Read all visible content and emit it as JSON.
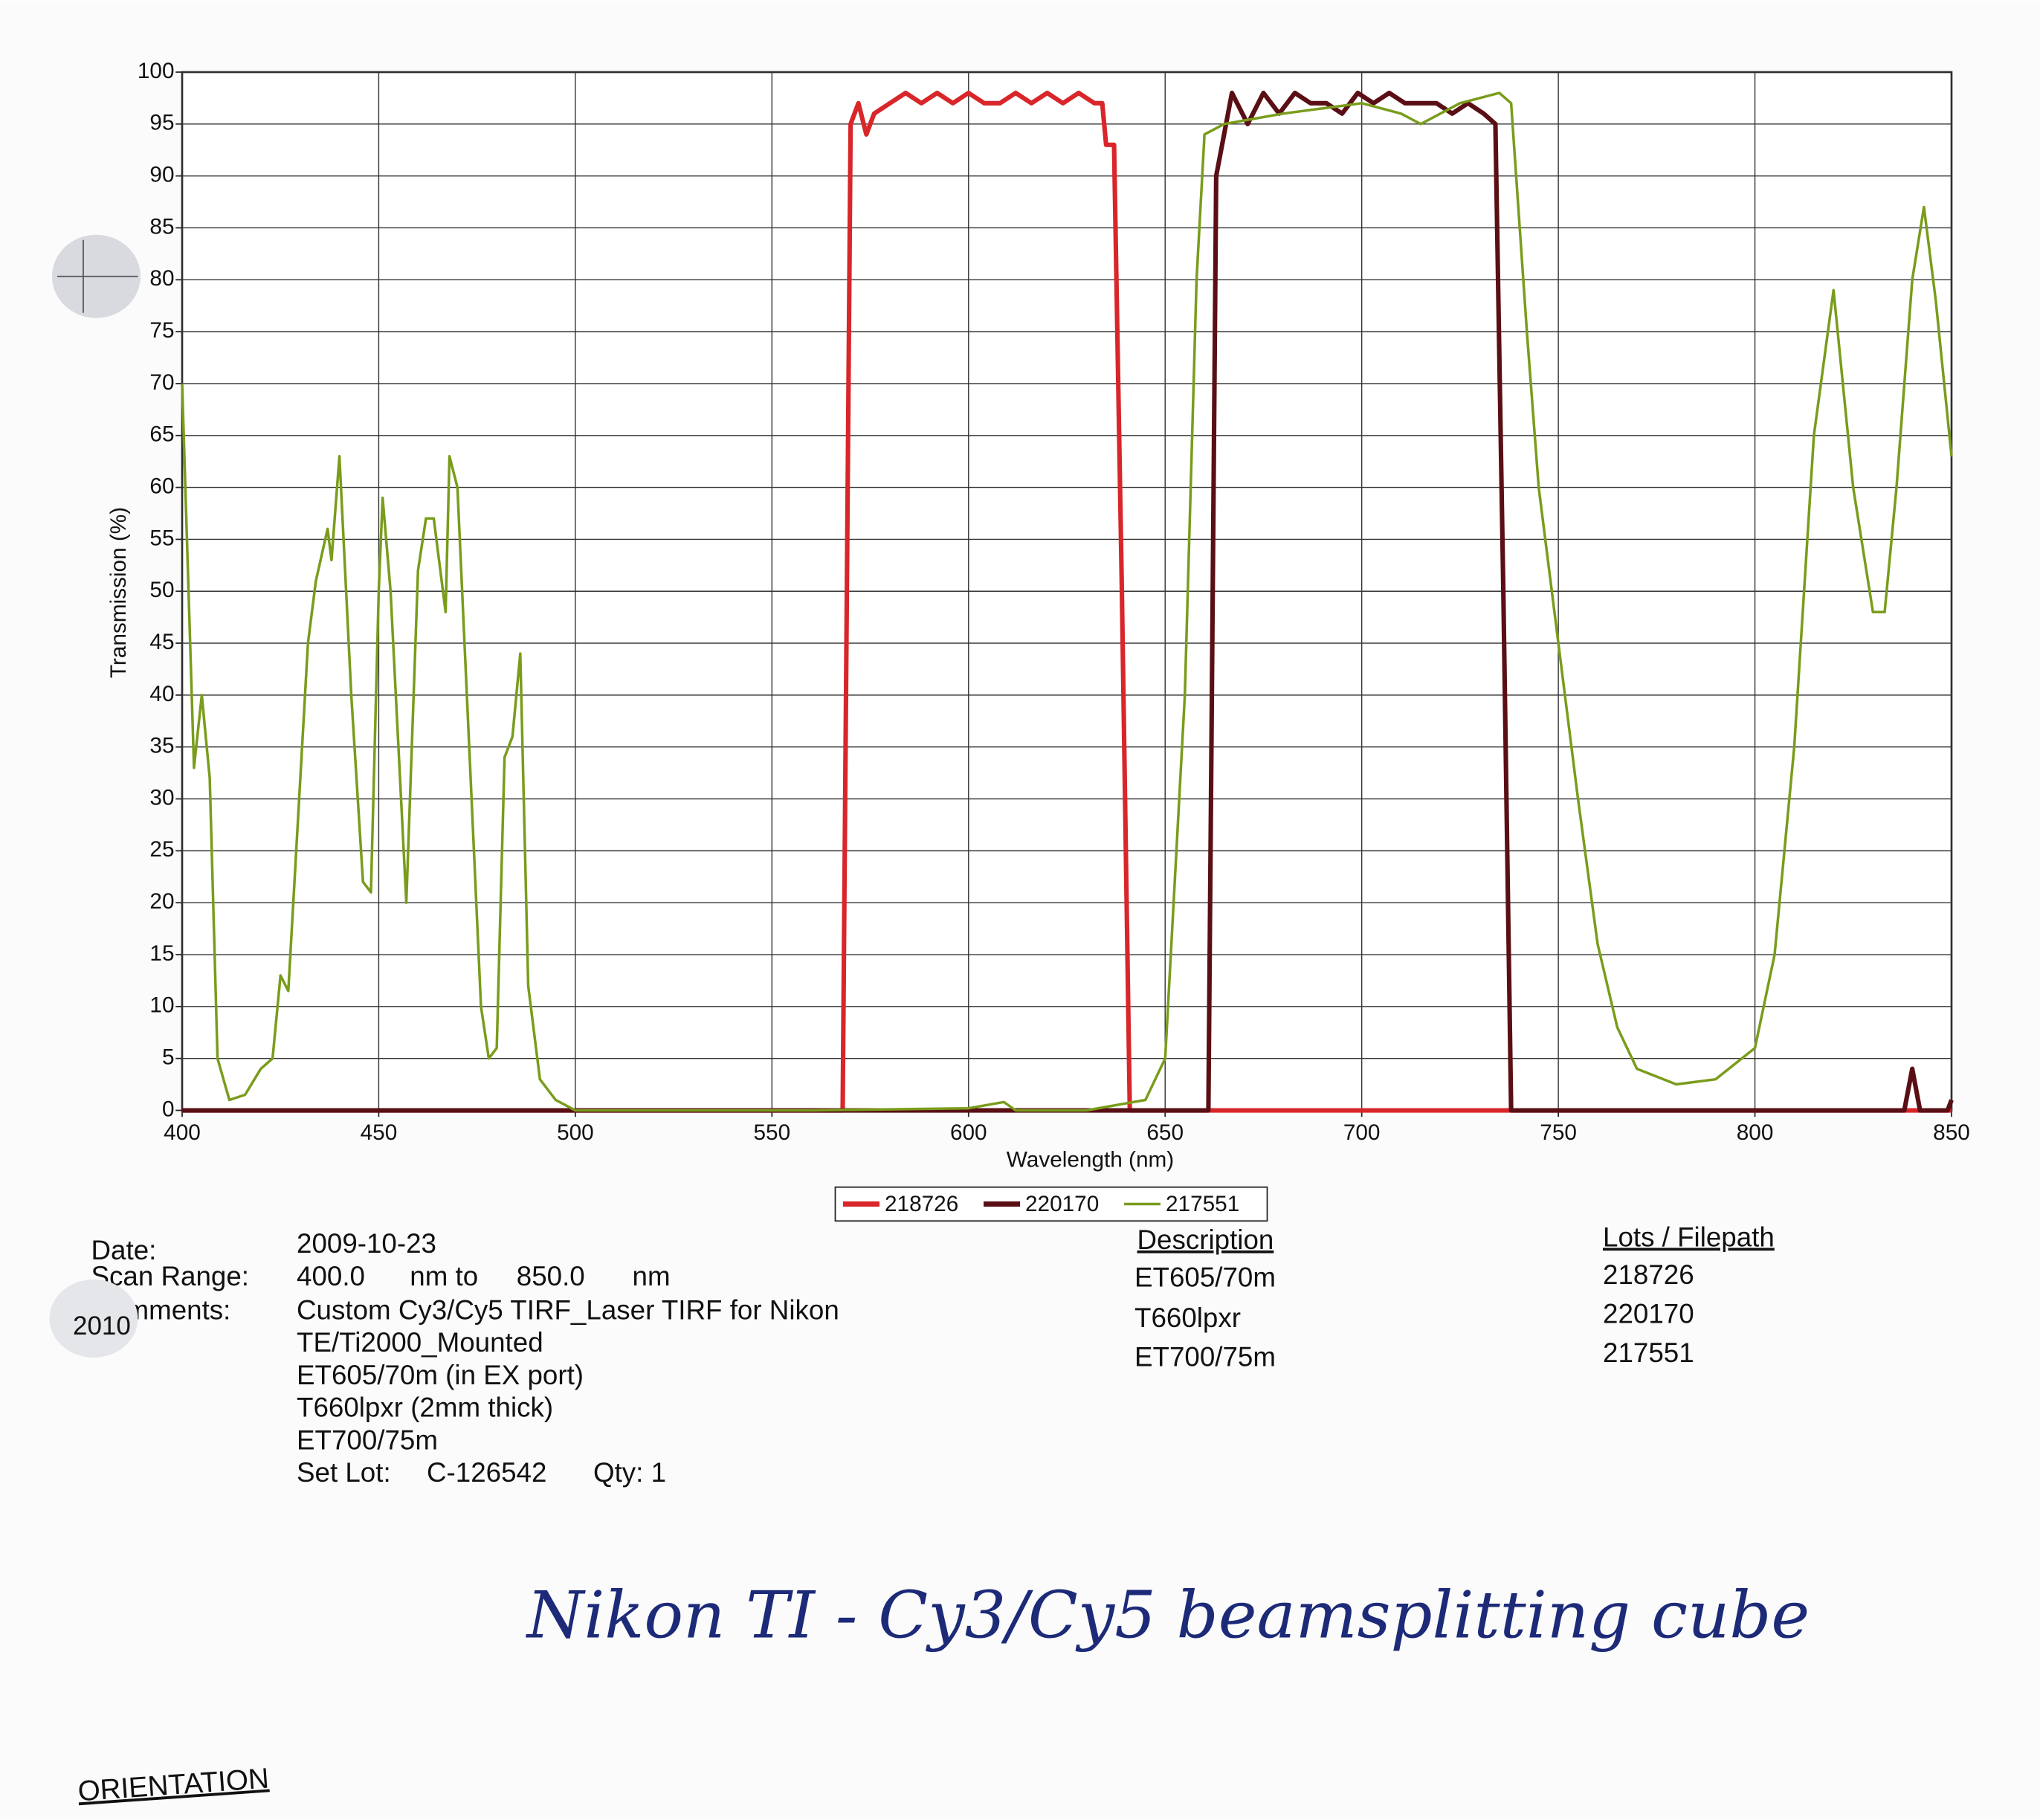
{
  "chart_data": {
    "type": "line",
    "xlabel": "Wavelength (nm)",
    "ylabel": "Transmission (%)",
    "xlim": [
      400,
      850
    ],
    "xticks": [
      400,
      450,
      500,
      550,
      600,
      650,
      700,
      750,
      800,
      850
    ],
    "ylim": [
      0,
      100
    ],
    "yticks": [
      0,
      5,
      10,
      15,
      20,
      25,
      30,
      35,
      40,
      45,
      50,
      55,
      60,
      65,
      70,
      75,
      80,
      85,
      90,
      95,
      100
    ],
    "grid": true,
    "legend": "bottom",
    "series": [
      {
        "name": "218726",
        "color": "#d8262a",
        "x": [
          400,
          568,
          570,
          572,
          574,
          576,
          580,
          584,
          588,
          592,
          596,
          600,
          604,
          608,
          612,
          616,
          620,
          624,
          628,
          632,
          634,
          635,
          637,
          639,
          641,
          850
        ],
        "values": [
          0,
          0,
          95,
          97,
          94,
          96,
          97,
          98,
          97,
          98,
          97,
          98,
          97,
          97,
          98,
          97,
          98,
          97,
          98,
          97,
          97,
          93,
          93,
          50,
          0,
          0
        ]
      },
      {
        "name": "220170",
        "color": "#5a0f14",
        "x": [
          400,
          661,
          663,
          667,
          671,
          675,
          679,
          683,
          687,
          691,
          695,
          699,
          703,
          707,
          711,
          715,
          719,
          723,
          727,
          731,
          734,
          736,
          738,
          838,
          840,
          842,
          849,
          850
        ],
        "values": [
          0,
          0,
          90,
          98,
          95,
          98,
          96,
          98,
          97,
          97,
          96,
          98,
          97,
          98,
          97,
          97,
          97,
          96,
          97,
          96,
          95,
          50,
          0,
          0,
          4,
          0,
          0,
          1
        ]
      },
      {
        "name": "217551",
        "color": "#7a9c1c",
        "x": [
          400,
          403,
          405,
          407,
          409,
          412,
          416,
          420,
          423,
          425,
          427,
          432,
          434,
          437,
          438,
          440,
          443,
          446,
          448,
          450,
          451,
          453,
          457,
          460,
          462,
          464,
          467,
          468,
          470,
          476,
          478,
          480,
          482,
          484,
          486,
          488,
          491,
          495,
          500,
          560,
          600,
          609,
          612,
          630,
          645,
          650,
          655,
          658,
          660,
          665,
          680,
          700,
          710,
          715,
          725,
          735,
          738,
          742,
          745,
          750,
          755,
          760,
          765,
          770,
          780,
          790,
          800,
          805,
          810,
          815,
          820,
          825,
          830,
          833,
          836,
          840,
          843,
          846,
          850
        ],
        "values": [
          70,
          33,
          40,
          32,
          5,
          1,
          1.5,
          4,
          5,
          13,
          11.5,
          45,
          51,
          56,
          53,
          63,
          40,
          22,
          21,
          50,
          59,
          50,
          20,
          52,
          57,
          57,
          48,
          63,
          60,
          10,
          5,
          6,
          34,
          36,
          44,
          12,
          3,
          1,
          0,
          0,
          0.2,
          0.8,
          0,
          0,
          1,
          5,
          40,
          80,
          94,
          95,
          96,
          97,
          96,
          95,
          97,
          98,
          97,
          75,
          60,
          45,
          30,
          16,
          8,
          4,
          2.5,
          3,
          6,
          15,
          35,
          65,
          79,
          60,
          48,
          48,
          60,
          80,
          87,
          78,
          63
        ]
      }
    ]
  },
  "info": {
    "date_label": "Date:",
    "date": "2009-10-23",
    "scan_label": "Scan Range:",
    "scan_from": "400.0",
    "scan_from_unit": "nm to",
    "scan_to": "850.0",
    "scan_to_unit": "nm",
    "comments_label": "Comments:",
    "comments": [
      "Custom Cy3/Cy5 TIRF_Laser TIRF for Nikon",
      "TE/Ti2000_Mounted",
      "ET605/70m (in EX port)",
      "T660lpxr (2mm thick)",
      "ET700/75m"
    ],
    "set_lot_label": "Set Lot:",
    "set_lot": "C-126542",
    "qty": "Qty: 1",
    "sticker": "2010"
  },
  "table": {
    "headers": [
      "Description",
      "Lots / Filepath"
    ],
    "rows": [
      [
        "ET605/70m",
        "218726"
      ],
      [
        "T660lpxr",
        "220170"
      ],
      [
        "ET700/75m",
        "217551"
      ]
    ]
  },
  "handwriting": "Nikon TI  - Cy3/Cy5 beamsplitting cube",
  "footer": "ORIENTATION"
}
